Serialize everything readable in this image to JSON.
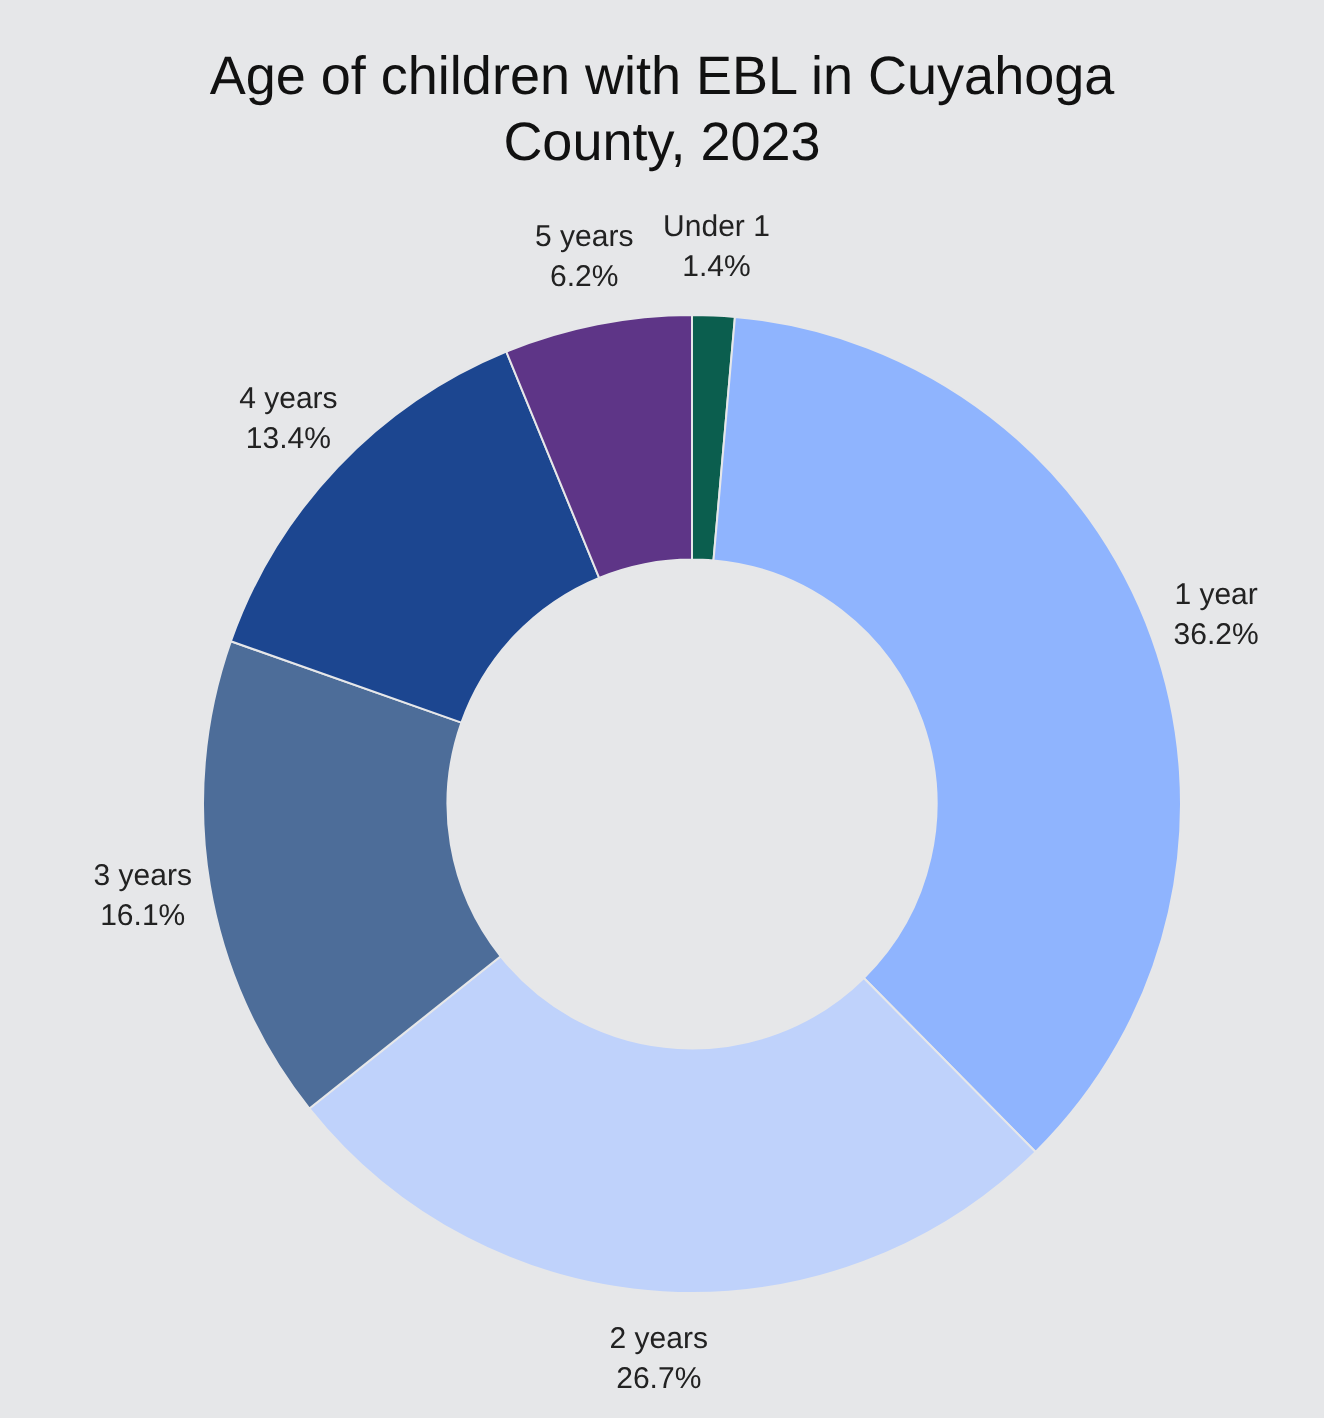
{
  "chart_data": {
    "type": "donut",
    "title": "Age of children with EBL in Cuyahoga County, 2023",
    "categories": [
      "Under 1",
      "1 year",
      "2 years",
      "3 years",
      "4 years",
      "5 years"
    ],
    "values": [
      1.4,
      36.2,
      26.7,
      16.1,
      13.4,
      6.2
    ],
    "value_labels": [
      "1.4%",
      "36.2%",
      "26.7%",
      "16.1%",
      "13.4%",
      "6.2%"
    ],
    "colors": [
      "#0b5e4e",
      "#8fb4fe",
      "#bfd2fb",
      "#4d6d99",
      "#1c4690",
      "#5e3587"
    ],
    "legend": false
  }
}
